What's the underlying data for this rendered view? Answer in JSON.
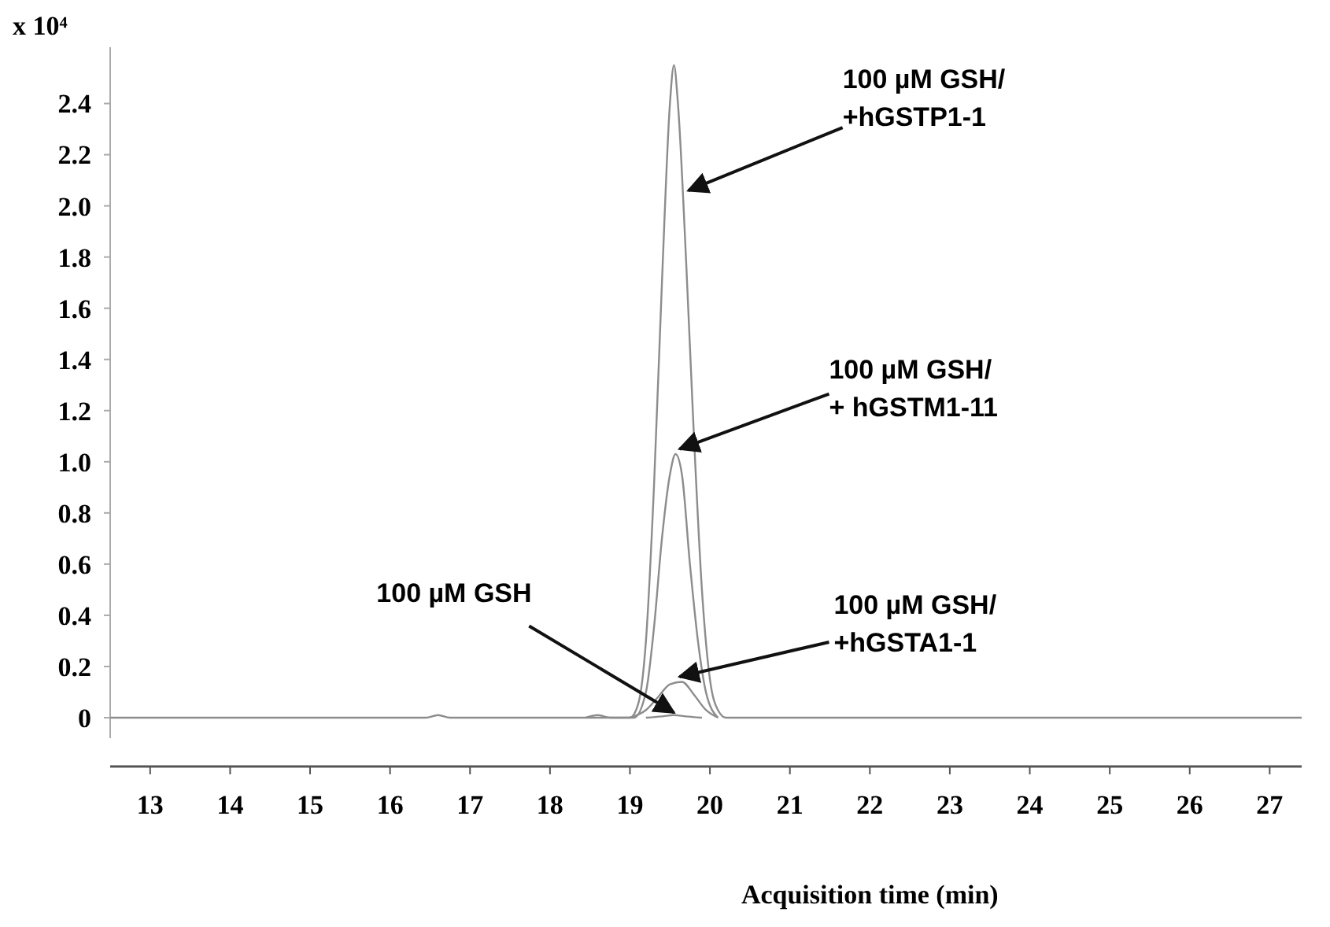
{
  "chart_data": {
    "type": "line",
    "xlabel": "Acquisition time (min)",
    "ylabel": "x 10⁴",
    "xlim": [
      12.5,
      27.4
    ],
    "ylim": [
      -0.08,
      2.62
    ],
    "xticks": [
      13,
      14,
      15,
      16,
      17,
      18,
      19,
      20,
      21,
      22,
      23,
      24,
      25,
      26,
      27
    ],
    "yticks": [
      0,
      0.2,
      0.4,
      0.6,
      0.8,
      {
        "value": 1,
        "label": "1.0"
      },
      1.2,
      1.4,
      1.6,
      1.8,
      {
        "value": 2,
        "label": "2.0"
      },
      2.2,
      2.4
    ],
    "grid": false,
    "marker": "none",
    "line_style": "solid",
    "annotations": [
      {
        "text": "100 µM GSH/\n+hGSTP1-1",
        "x": 19.73,
        "y": 2.06
      },
      {
        "text": "100 µM GSH/\n+ hGSTM1-11",
        "x": 19.62,
        "y": 1.05
      },
      {
        "text": "100 µM GSH/\n+hGSTA1-1",
        "x": 19.62,
        "y": 0.16
      },
      {
        "text": "100 µM GSH",
        "x": 19.55,
        "y": 0.02
      }
    ],
    "series": [
      {
        "color": "#8c8c8c",
        "x": [
          12.5,
          16.45,
          16.6,
          16.75,
          19.0,
          19.1,
          19.2,
          19.3,
          19.4,
          19.5,
          19.55,
          19.6,
          19.7,
          19.8,
          19.9,
          20.0,
          20.1,
          20.2,
          27.4
        ],
        "values": [
          0,
          0,
          0.01,
          0,
          0,
          0.05,
          0.3,
          0.9,
          1.7,
          2.4,
          2.55,
          2.4,
          1.8,
          1.1,
          0.5,
          0.15,
          0.03,
          0,
          0
        ]
      },
      {
        "color": "#8c8c8c",
        "x": [
          18.45,
          18.6,
          18.75,
          19.05,
          19.2,
          19.3,
          19.4,
          19.5,
          19.57,
          19.65,
          19.75,
          19.85,
          19.95,
          20.1
        ],
        "values": [
          0,
          0.01,
          0,
          0,
          0.1,
          0.35,
          0.7,
          0.95,
          1.03,
          0.95,
          0.6,
          0.3,
          0.1,
          0
        ]
      },
      {
        "color": "#8c8c8c",
        "x": [
          19.0,
          19.2,
          19.35,
          19.5,
          19.65,
          19.8,
          19.95,
          20.1
        ],
        "values": [
          0,
          0.03,
          0.08,
          0.13,
          0.14,
          0.09,
          0.03,
          0
        ]
      },
      {
        "color": "#8c8c8c",
        "x": [
          19.2,
          19.4,
          19.55,
          19.7,
          19.9
        ],
        "values": [
          0,
          0.005,
          0.01,
          0.005,
          0
        ]
      }
    ]
  }
}
